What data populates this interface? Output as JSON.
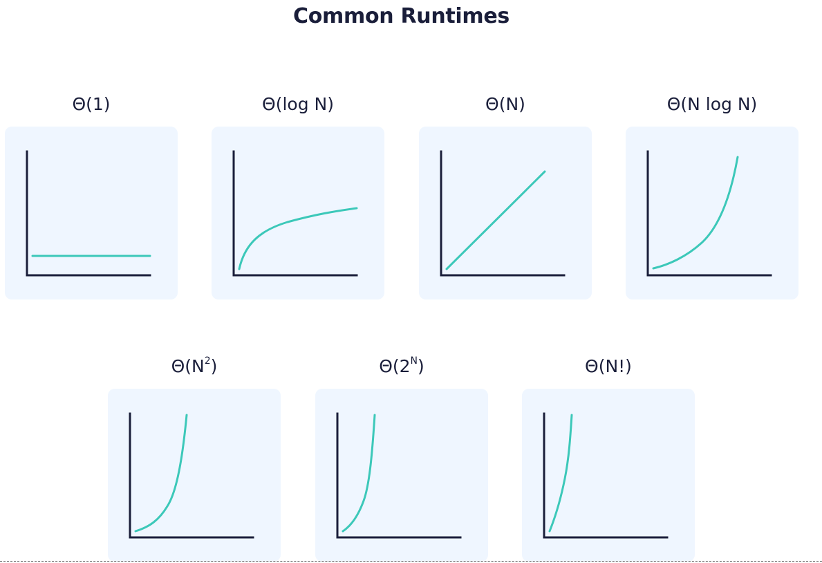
{
  "page": {
    "title": "Common Runtimes"
  },
  "colors": {
    "axis": "#1a1e3a",
    "curve": "#3cc8b9",
    "panel_background": "#eff6ff",
    "text": "#1a1e3a"
  },
  "chart_data": [
    {
      "type": "line",
      "title_base": "Θ(1)",
      "title_sup": "",
      "title_close": "",
      "growth": "constant"
    },
    {
      "type": "line",
      "title_base": "Θ(log N)",
      "title_sup": "",
      "title_close": "",
      "growth": "logarithmic"
    },
    {
      "type": "line",
      "title_base": "Θ(N)",
      "title_sup": "",
      "title_close": "",
      "growth": "linear"
    },
    {
      "type": "line",
      "title_base": "Θ(N log N)",
      "title_sup": "",
      "title_close": "",
      "growth": "linearithmic"
    },
    {
      "type": "line",
      "title_base": "Θ(N",
      "title_sup": "2",
      "title_close": ")",
      "growth": "quadratic"
    },
    {
      "type": "line",
      "title_base": "Θ(2",
      "title_sup": "N",
      "title_close": ")",
      "growth": "exponential"
    },
    {
      "type": "line",
      "title_base": "Θ(N!)",
      "title_sup": "",
      "title_close": "",
      "growth": "factorial"
    }
  ]
}
